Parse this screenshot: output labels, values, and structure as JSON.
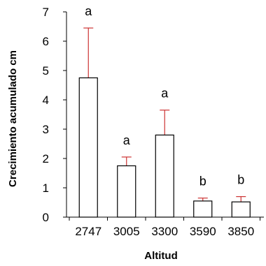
{
  "chart_data": {
    "type": "bar",
    "title": "",
    "xlabel": "Altitud",
    "ylabel": "Crecimiento acumulado cm",
    "categories": [
      "2747",
      "3005",
      "3300",
      "3590",
      "3850"
    ],
    "values": [
      4.75,
      1.75,
      2.8,
      0.55,
      0.52
    ],
    "error_upper": [
      6.45,
      2.05,
      3.65,
      0.65,
      0.7
    ],
    "significance_letters": [
      "a",
      "a",
      "a",
      "b",
      "b"
    ],
    "ylim": [
      0,
      7
    ],
    "yticks": [
      "0",
      "1",
      "2",
      "3",
      "4",
      "5",
      "6",
      "7"
    ],
    "grid": false,
    "bar_fill": "#ffffff",
    "bar_stroke": "#000000",
    "error_bar_color": "#cc3333"
  }
}
